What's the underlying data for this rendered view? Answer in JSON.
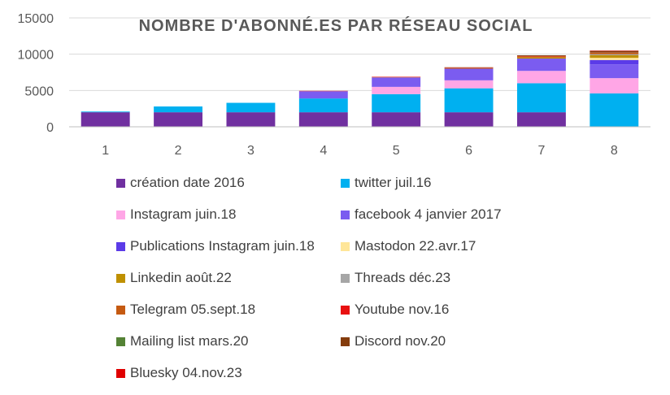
{
  "chart_data": {
    "type": "bar",
    "stacked": true,
    "title": "NOMBRE D'ABONNÉ.ES PAR RÉSEAU SOCIAL",
    "xlabel": "",
    "ylabel": "",
    "categories": [
      "1",
      "2",
      "3",
      "4",
      "5",
      "6",
      "7",
      "8"
    ],
    "ylim": [
      0,
      15000
    ],
    "yticks": [
      "0",
      "5000",
      "10000",
      "15000"
    ],
    "grid": true,
    "legend_position": "bottom",
    "series": [
      {
        "name": "création date 2016",
        "color": "#7030A0",
        "values": [
          2000,
          2000,
          2000,
          2000,
          2000,
          2000,
          2000,
          0
        ]
      },
      {
        "name": "twitter juil.16",
        "color": "#00B0F0",
        "values": [
          100,
          800,
          1300,
          1900,
          2500,
          3300,
          4000,
          4600
        ]
      },
      {
        "name": "Instagram juin.18",
        "color": "#FFA6E6",
        "values": [
          0,
          0,
          0,
          0,
          1000,
          1100,
          1700,
          2100
        ]
      },
      {
        "name": "facebook  4 janvier 2017",
        "color": "#7B5CF0",
        "values": [
          0,
          0,
          0,
          1000,
          1300,
          1600,
          1700,
          1900
        ]
      },
      {
        "name": "Publications Instagram juin.18",
        "color": "#5B3BE8",
        "values": [
          0,
          0,
          0,
          0,
          0,
          0,
          0,
          600
        ]
      },
      {
        "name": "Mastodon 22.avr.17",
        "color": "#FFE699",
        "values": [
          0,
          0,
          0,
          0,
          0,
          0,
          0,
          300
        ]
      },
      {
        "name": "Linkedin août.22",
        "color": "#BF9000",
        "values": [
          0,
          0,
          0,
          0,
          0,
          0,
          150,
          350
        ]
      },
      {
        "name": "Threads déc.23",
        "color": "#A6A6A6",
        "values": [
          0,
          0,
          0,
          0,
          0,
          0,
          0,
          150
        ]
      },
      {
        "name": "Telegram 05.sept.18",
        "color": "#C55A11",
        "values": [
          0,
          0,
          0,
          0,
          50,
          100,
          150,
          200
        ]
      },
      {
        "name": "Youtube nov.16",
        "color": "#E81010",
        "values": [
          0,
          0,
          0,
          50,
          50,
          50,
          50,
          50
        ]
      },
      {
        "name": "Mailing list mars.20",
        "color": "#548235",
        "values": [
          0,
          0,
          0,
          0,
          0,
          0,
          0,
          50
        ]
      },
      {
        "name": "Discord nov.20",
        "color": "#843C0C",
        "values": [
          0,
          0,
          0,
          0,
          0,
          50,
          100,
          150
        ]
      },
      {
        "name": "Bluesky 04.nov.23",
        "color": "#E00000",
        "values": [
          0,
          0,
          0,
          0,
          0,
          0,
          0,
          50
        ]
      }
    ]
  }
}
